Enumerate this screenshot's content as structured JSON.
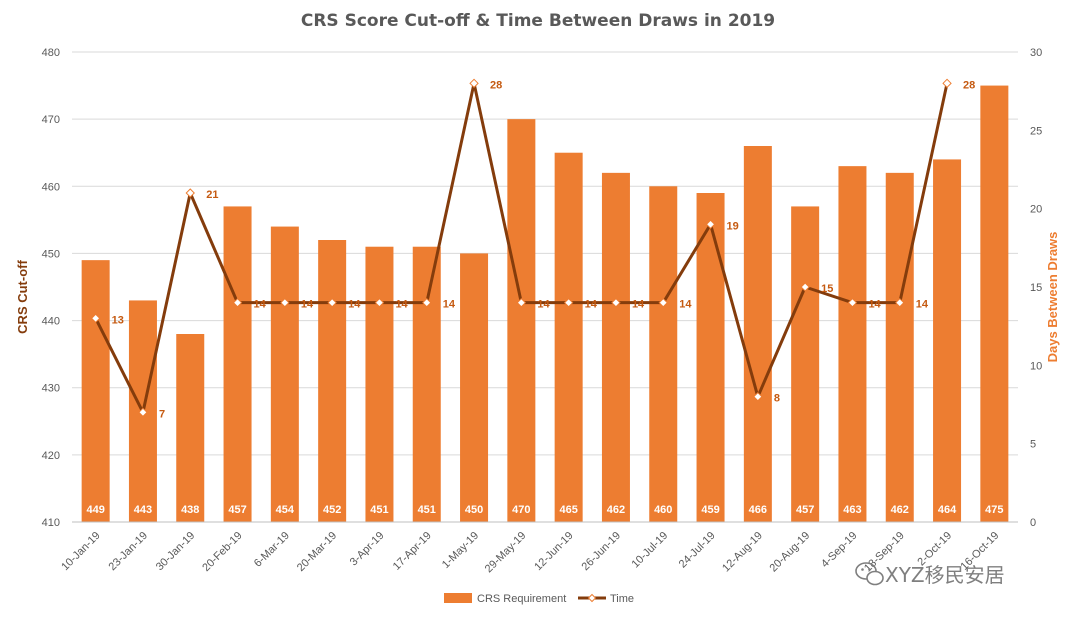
{
  "chart_data": {
    "type": "bar",
    "title": "CRS Score Cut-off & Time Between Draws in 2019",
    "categories": [
      "10-Jan-19",
      "23-Jan-19",
      "30-Jan-19",
      "20-Feb-19",
      "6-Mar-19",
      "20-Mar-19",
      "3-Apr-19",
      "17-Apr-19",
      "1-May-19",
      "29-May-19",
      "12-Jun-19",
      "26-Jun-19",
      "10-Jul-19",
      "24-Jul-19",
      "12-Aug-19",
      "20-Aug-19",
      "4-Sep-19",
      "18-Sep-19",
      "2-Oct-19",
      "16-Oct-19"
    ],
    "series": [
      {
        "name": "CRS Requirement",
        "type": "bar",
        "axis": "left",
        "color": "#ed7d31",
        "values": [
          449,
          443,
          438,
          457,
          454,
          452,
          451,
          451,
          450,
          470,
          465,
          462,
          460,
          459,
          466,
          457,
          463,
          462,
          464,
          475
        ]
      },
      {
        "name": "Time",
        "type": "line",
        "axis": "right",
        "color": "#843c0c",
        "values": [
          13,
          7,
          21,
          14,
          14,
          14,
          14,
          14,
          28,
          14,
          14,
          14,
          14,
          19,
          8,
          15,
          14,
          14,
          28,
          null
        ]
      }
    ],
    "ylabel": "CRS Cut-off",
    "y2label": "Days Between Draws",
    "ylim": [
      410,
      480
    ],
    "y_ticks": [
      410,
      420,
      430,
      440,
      450,
      460,
      470,
      480
    ],
    "y2lim": [
      0,
      30
    ],
    "y2_ticks": [
      0,
      5,
      10,
      15,
      20,
      25,
      30
    ],
    "grid": true,
    "legend_position": "bottom"
  },
  "watermark": "XYZ移民安居"
}
